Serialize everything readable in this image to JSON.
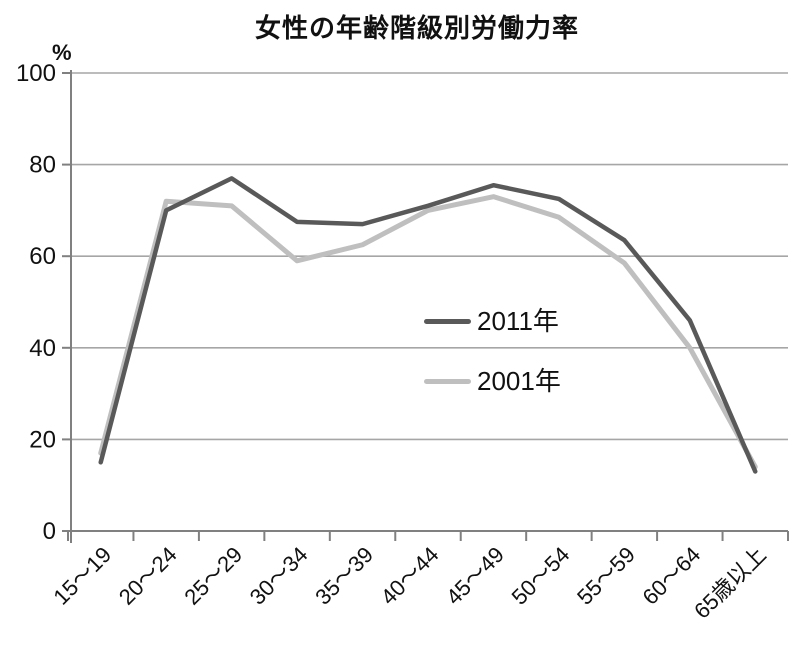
{
  "chart_data": {
    "type": "line",
    "title": "女性の年齢階級別労働力率",
    "unit_label": "%",
    "categories": [
      "15〜19",
      "20〜24",
      "25〜29",
      "30〜34",
      "35〜39",
      "40〜44",
      "45〜49",
      "50〜54",
      "55〜59",
      "60〜64",
      "65歳以上"
    ],
    "series": [
      {
        "name": "2011年",
        "color": "#595959",
        "stroke_width": 4.5,
        "values": [
          15,
          70,
          77,
          67.5,
          67,
          71,
          75.5,
          72.5,
          63.5,
          46,
          13
        ]
      },
      {
        "name": "2001年",
        "color": "#bfbfbf",
        "stroke_width": 5,
        "values": [
          17,
          72,
          71,
          59,
          62.5,
          70,
          73,
          68.5,
          58.5,
          40,
          14
        ]
      }
    ],
    "y_axis": {
      "min": 0,
      "max": 100,
      "tick_interval": 20,
      "tick_labels": [
        "0",
        "20",
        "40",
        "60",
        "80",
        "100"
      ]
    },
    "grid": true,
    "legend_position": "inside-center-right",
    "colors": {
      "gridline": "#a6a6a6",
      "axis": "#808080",
      "text": "#111111"
    }
  }
}
